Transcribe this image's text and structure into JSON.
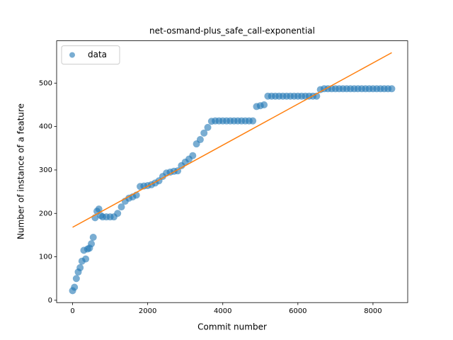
{
  "chart_data": {
    "type": "scatter",
    "title": "net-osmand-plus_safe_call-exponential",
    "x_label": "Commit number",
    "y_label": "Number of instance of a feature",
    "xlim": [
      -425,
      8925
    ],
    "ylim": [
      -5.4,
      597.4
    ],
    "xticks": [
      0,
      2000,
      4000,
      6000,
      8000
    ],
    "yticks": [
      0,
      100,
      200,
      300,
      400,
      500
    ],
    "legend": "upper left",
    "series": [
      {
        "name": "data",
        "color": "#1f77b4",
        "mode": "markers",
        "x": [
          0,
          50,
          100,
          150,
          200,
          250,
          300,
          350,
          400,
          450,
          500,
          550,
          600,
          650,
          700,
          750,
          800,
          900,
          1000,
          1100,
          1200,
          1300,
          1400,
          1500,
          1600,
          1700,
          1800,
          1900,
          2000,
          2100,
          2200,
          2300,
          2400,
          2500,
          2600,
          2700,
          2800,
          2900,
          3000,
          3100,
          3200,
          3300,
          3400,
          3500,
          3600,
          3700,
          3800,
          3900,
          4000,
          4100,
          4200,
          4300,
          4400,
          4500,
          4600,
          4700,
          4800,
          4900,
          5000,
          5100,
          5200,
          5300,
          5400,
          5500,
          5600,
          5700,
          5800,
          5900,
          6000,
          6100,
          6200,
          6300,
          6400,
          6500,
          6600,
          6700,
          6800,
          6900,
          7000,
          7100,
          7200,
          7300,
          7400,
          7500,
          7600,
          7700,
          7800,
          7900,
          8000,
          8100,
          8200,
          8300,
          8400,
          8500
        ],
        "values": [
          22,
          30,
          50,
          65,
          75,
          90,
          115,
          95,
          118,
          120,
          130,
          145,
          190,
          205,
          210,
          195,
          192,
          192,
          192,
          192,
          200,
          215,
          228,
          235,
          238,
          242,
          262,
          263,
          264,
          266,
          270,
          275,
          285,
          293,
          295,
          297,
          298,
          310,
          318,
          325,
          333,
          360,
          370,
          385,
          398,
          412,
          413,
          413,
          413,
          413,
          413,
          413,
          413,
          413,
          413,
          413,
          413,
          446,
          448,
          450,
          470,
          470,
          470,
          470,
          470,
          470,
          470,
          470,
          470,
          470,
          470,
          470,
          470,
          470,
          485,
          487,
          487,
          487,
          487,
          487,
          487,
          487,
          487,
          487,
          487,
          487,
          487,
          487,
          487,
          487,
          487,
          487,
          487,
          487
        ]
      },
      {
        "color": "#ff7f0e",
        "mode": "line",
        "x": [
          0,
          8500
        ],
        "values": [
          168,
          570
        ]
      }
    ]
  }
}
